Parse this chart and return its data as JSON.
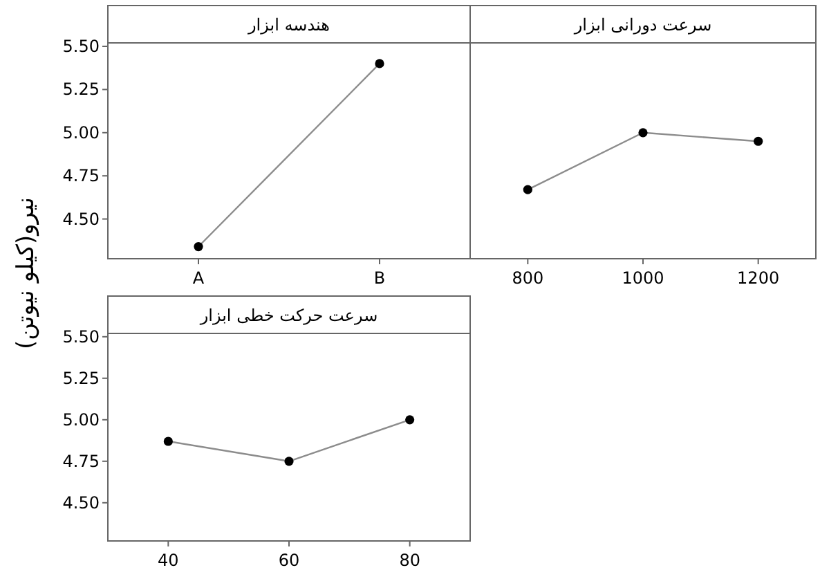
{
  "chart_data": [
    {
      "type": "line",
      "title": "هندسه ابزار",
      "ylabel": "نیرو(کیلو نیوتن)",
      "categories": [
        "A",
        "B"
      ],
      "values": [
        4.34,
        5.4
      ],
      "color": "#000000",
      "marker": "circle",
      "ylim": [
        4.27,
        5.52
      ],
      "yticks": [
        {
          "value": 4.5,
          "label": "4.50"
        },
        {
          "value": 4.75,
          "label": "4.75"
        },
        {
          "value": 5.0,
          "label": "5.00"
        },
        {
          "value": 5.25,
          "label": "5.25"
        },
        {
          "value": 5.5,
          "label": "5.50"
        }
      ]
    },
    {
      "type": "line",
      "title": "سرعت دورانی ابزار",
      "categories": [
        "800",
        "1000",
        "1200"
      ],
      "values": [
        4.67,
        5.0,
        4.95
      ],
      "color": "#000000",
      "marker": "circle",
      "ylim": [
        4.27,
        5.52
      ],
      "tick_labels": "x"
    },
    {
      "type": "line",
      "title": "سرعت حرکت خطی ابزار",
      "categories": [
        "40",
        "60",
        "80"
      ],
      "values": [
        4.87,
        4.75,
        5.0
      ],
      "color": "#000000",
      "marker": "circle",
      "ylim": [
        4.27,
        5.52
      ],
      "yticks": [
        {
          "value": 4.5,
          "label": "4.50"
        },
        {
          "value": 4.75,
          "label": "4.75"
        },
        {
          "value": 5.0,
          "label": "5.00"
        },
        {
          "value": 5.25,
          "label": "5.25"
        },
        {
          "value": 5.5,
          "label": "5.50"
        }
      ]
    }
  ]
}
